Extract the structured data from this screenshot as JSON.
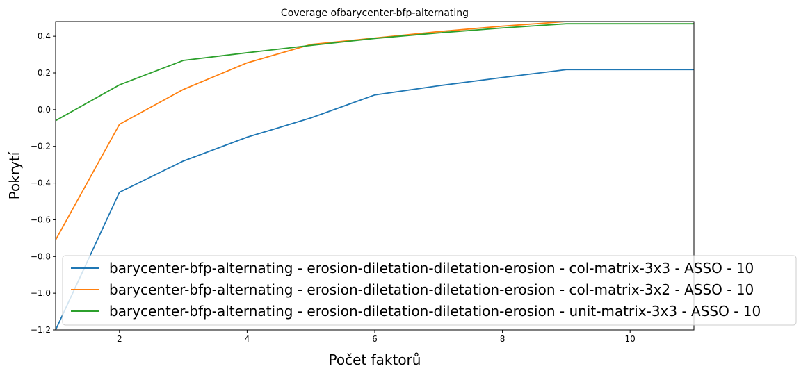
{
  "chart_data": {
    "type": "line",
    "title": "Coverage ofbarycenter-bfp-alternating",
    "xlabel": "Počet faktorů",
    "ylabel": "Pokrytí",
    "xlim": [
      1,
      11
    ],
    "ylim": [
      -1.2,
      0.48
    ],
    "xticks": [
      2,
      4,
      6,
      8,
      10
    ],
    "xtick_labels": [
      "2",
      "4",
      "6",
      "8",
      "10"
    ],
    "yticks": [
      -1.2,
      -1.0,
      -0.8,
      -0.6,
      -0.4,
      -0.2,
      0.0,
      0.2,
      0.4
    ],
    "ytick_labels": [
      "−1.2",
      "−1.0",
      "−0.8",
      "−0.6",
      "−0.4",
      "−0.2",
      "0.0",
      "0.2",
      "0.4"
    ],
    "grid": false,
    "legend_position": "lower-right",
    "x": [
      1,
      2,
      3,
      4,
      5,
      6,
      7,
      8,
      9,
      10,
      11
    ],
    "series": [
      {
        "name": "barycenter-bfp-alternating - erosion-diletation-diletation-erosion - col-matrix-3x3 - ASSO - 10",
        "color": "#1f77b4",
        "values": [
          -1.2,
          -0.45,
          -0.28,
          -0.15,
          -0.045,
          0.08,
          0.13,
          0.175,
          0.218,
          0.218,
          0.218
        ]
      },
      {
        "name": "barycenter-bfp-alternating - erosion-diletation-diletation-erosion - col-matrix-3x2 - ASSO - 10",
        "color": "#ff7f0e",
        "values": [
          -0.71,
          -0.08,
          0.11,
          0.255,
          0.355,
          0.39,
          0.425,
          0.455,
          0.48,
          0.48,
          0.48
        ]
      },
      {
        "name": "barycenter-bfp-alternating - erosion-diletation-diletation-erosion - unit-matrix-3x3 - ASSO - 10",
        "color": "#2ca02c",
        "values": [
          -0.06,
          0.135,
          0.268,
          0.31,
          0.35,
          0.388,
          0.418,
          0.445,
          0.468,
          0.468,
          0.468
        ]
      }
    ]
  }
}
